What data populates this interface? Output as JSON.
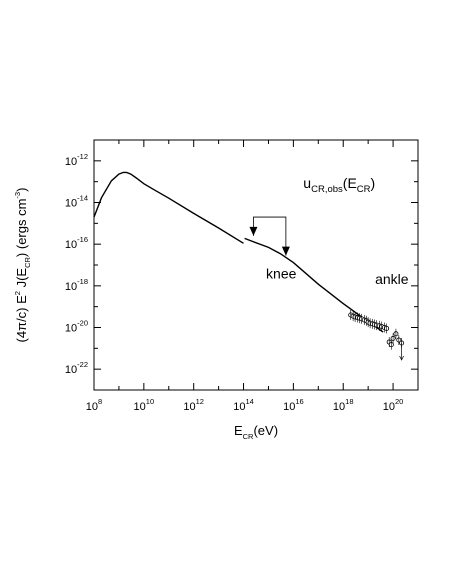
{
  "chart_data": {
    "type": "line",
    "xscale": "log",
    "yscale": "log",
    "xlim": [
      100000000.0,
      1e+21
    ],
    "ylim": [
      1e-23,
      1e-11
    ],
    "grid": false,
    "xlabel": {
      "base": "E",
      "sub": "CR",
      "tail": "(eV)"
    },
    "ylabel": "(4π/c) E² J(Eₙₓ) (ergs cm⁻³)",
    "ylabel_parts": {
      "pre": "(4π/c) E",
      "sup": "2",
      "mid": " J(E",
      "sub": "CR",
      "post": ") (ergs cm",
      "sup2": "-3",
      "end": ")"
    },
    "x_ticks": [
      {
        "value": 100000000.0,
        "base": "10",
        "exp": "8"
      },
      {
        "value": 10000000000.0,
        "base": "10",
        "exp": "10"
      },
      {
        "value": 1000000000000.0,
        "base": "10",
        "exp": "12"
      },
      {
        "value": 100000000000000.0,
        "base": "10",
        "exp": "14"
      },
      {
        "value": 1e+16,
        "base": "10",
        "exp": "16"
      },
      {
        "value": 1e+18,
        "base": "10",
        "exp": "18"
      },
      {
        "value": 1e+20,
        "base": "10",
        "exp": "20"
      }
    ],
    "y_ticks": [
      {
        "value": 1e-12,
        "base": "10",
        "exp": "-12"
      },
      {
        "value": 1e-14,
        "base": "10",
        "exp": "-14"
      },
      {
        "value": 1e-16,
        "base": "10",
        "exp": "-16"
      },
      {
        "value": 1e-18,
        "base": "10",
        "exp": "-18"
      },
      {
        "value": 1e-20,
        "base": "10",
        "exp": "-20"
      },
      {
        "value": 1e-22,
        "base": "10",
        "exp": "-22"
      }
    ],
    "series": [
      {
        "style": "solid",
        "x": [
          100000000.0,
          200000000.0,
          500000000.0,
          1000000000.0,
          1500000000.0,
          2000000000.0,
          3000000000.0,
          5000000000.0,
          10000000000.0,
          30000000000.0,
          100000000000.0,
          1000000000000.0,
          10000000000000.0,
          100000000000000.0
        ],
        "y": [
          2e-15,
          1.7e-14,
          1.1e-13,
          2.3e-13,
          2.8e-13,
          2.8e-13,
          2.3e-13,
          1.5e-13,
          8e-14,
          3.7e-14,
          1.6e-14,
          3e-15,
          6e-16,
          1.1e-16
        ]
      },
      {
        "style": "solid",
        "x": [
          110000000000000.0,
          1000000000000000.0,
          3000000000000000.0,
          1e+16,
          1e+17,
          1e+18,
          1e+19,
          4e+19
        ],
        "y": [
          1.9e-16,
          7e-17,
          3.5e-17,
          1.3e-17,
          1.2e-18,
          1.4e-19,
          1.9e-20,
          6e-21
        ]
      }
    ],
    "observations": {
      "x": [
        2e+18,
        2.5e+18,
        3e+18,
        3.8e+18,
        4.5e+18,
        5.5e+18,
        7e+18,
        8.5e+18,
        1e+19,
        1.2e+19,
        1.5e+19,
        1.8e+19,
        2.2e+19,
        2.8e+19,
        3.5e+19,
        4.5e+19,
        5.5e+19,
        7e+19,
        8.5e+19,
        1e+20,
        1.3e+20,
        1.7e+20,
        2.2e+20
      ],
      "y": [
        4e-20,
        3.5e-20,
        3.2e-20,
        3e-20,
        2.8e-20,
        2.6e-20,
        2.3e-20,
        2.1e-20,
        1.8e-20,
        1.6e-20,
        1.5e-20,
        1.4e-20,
        1.3e-20,
        1.2e-20,
        1.1e-20,
        1e-20,
        9e-21,
        2e-21,
        1.5e-21,
        3e-21,
        5e-21,
        2.5e-21,
        1.8e-21
      ]
    },
    "annotations": [
      {
        "text": "knee",
        "at": [
          800000000000000.0,
          2.2e-18
        ]
      },
      {
        "text": "ankle",
        "at": [
          1.9e+19,
          1.2e-18
        ]
      },
      {
        "label": {
          "base": "u",
          "sub": "CR,obs",
          "mid": "(E",
          "sub2": "CR",
          "end": ")"
        },
        "at": [
          2.5e+16,
          5e-14
        ]
      }
    ],
    "knee_bracket": {
      "x_left": 250000000000000.0,
      "x_right": 5000000000000000.0
    }
  }
}
